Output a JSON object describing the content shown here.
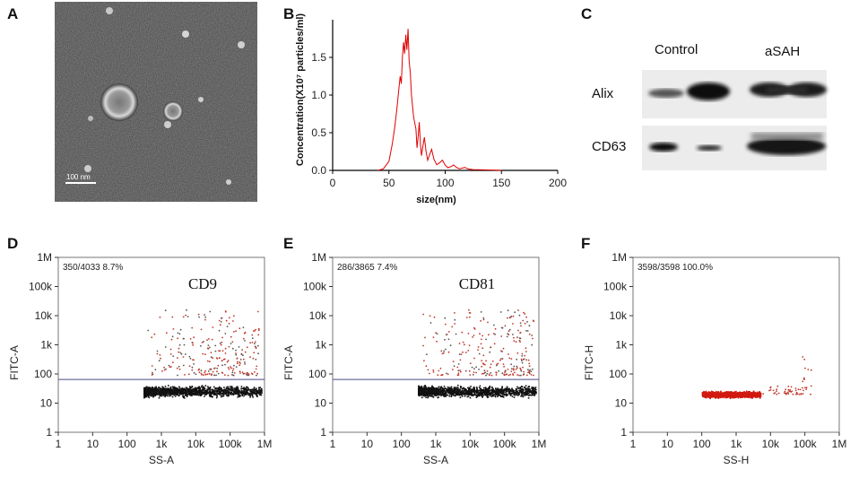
{
  "panels": {
    "A": {
      "letter": "A",
      "scale_bar": "100 nm"
    },
    "B": {
      "letter": "B"
    },
    "C": {
      "letter": "C",
      "columns": [
        "Control",
        "aSAH"
      ],
      "rows": [
        "Alix",
        "CD63"
      ]
    },
    "D": {
      "letter": "D"
    },
    "E": {
      "letter": "E"
    },
    "F": {
      "letter": "F"
    }
  },
  "chart_data": [
    {
      "id": "B",
      "type": "line",
      "title": "",
      "xlabel": "size(nm)",
      "ylabel": "Concentration(X10⁷ particles/ml)",
      "xlim": [
        0,
        200
      ],
      "ylim": [
        0,
        2.0
      ],
      "xticks": [
        "0",
        "50",
        "100",
        "150",
        "200"
      ],
      "yticks": [
        "0.0",
        "0.5",
        "1.0",
        "1.5"
      ],
      "color": "#e00000",
      "series": [
        {
          "name": "size distribution",
          "x": [
            40,
            45,
            50,
            53,
            55,
            57,
            59,
            60,
            61,
            62,
            63,
            64,
            65,
            66,
            67,
            68,
            69,
            70,
            71,
            72,
            74,
            76,
            78,
            80,
            83,
            86,
            90,
            95,
            100,
            105,
            110,
            115,
            120,
            130,
            140,
            150
          ],
          "y": [
            0.0,
            0.02,
            0.12,
            0.35,
            0.55,
            0.8,
            1.1,
            1.25,
            1.15,
            1.5,
            1.7,
            1.55,
            1.8,
            1.6,
            1.88,
            1.45,
            1.3,
            1.0,
            0.85,
            0.7,
            0.55,
            0.45,
            0.35,
            0.3,
            0.25,
            0.2,
            0.15,
            0.1,
            0.07,
            0.05,
            0.04,
            0.03,
            0.02,
            0.01,
            0.005,
            0.0
          ]
        }
      ]
    },
    {
      "id": "D",
      "type": "scatter",
      "xlabel": "SS-A",
      "ylabel": "FITC-A",
      "xscale": "log",
      "yscale": "log",
      "xticks": [
        "1",
        "10",
        "100",
        "1k",
        "10k",
        "100k",
        "1M"
      ],
      "yticks": [
        "1",
        "10",
        "100",
        "1k",
        "10k",
        "100k",
        "1M"
      ],
      "gate_stat": "350/4033  8.7%",
      "marker": "CD9",
      "gate_line_y": 65,
      "population_x": [
        300,
        800000
      ],
      "population_y": [
        15,
        45
      ],
      "positive_fraction": 0.087
    },
    {
      "id": "E",
      "type": "scatter",
      "xlabel": "SS-A",
      "ylabel": "FITC-A",
      "xscale": "log",
      "yscale": "log",
      "xticks": [
        "1",
        "10",
        "100",
        "1k",
        "10k",
        "100k",
        "1M"
      ],
      "yticks": [
        "1",
        "10",
        "100",
        "1k",
        "10k",
        "100k",
        "1M"
      ],
      "gate_stat": "286/3865  7.4%",
      "marker": "CD81",
      "gate_line_y": 65,
      "population_x": [
        300,
        800000
      ],
      "population_y": [
        15,
        45
      ],
      "positive_fraction": 0.074
    },
    {
      "id": "F",
      "type": "scatter",
      "xlabel": "SS-H",
      "ylabel": "FITC-H",
      "xscale": "log",
      "yscale": "log",
      "xticks": [
        "1",
        "10",
        "100",
        "1k",
        "10k",
        "100k",
        "1M"
      ],
      "yticks": [
        "1",
        "10",
        "100",
        "1k",
        "10k",
        "100k",
        "1M"
      ],
      "gate_stat": "3598/3598  100.0%",
      "marker": "",
      "population_x": [
        100,
        5000
      ],
      "population_y": [
        15,
        28
      ],
      "positive_fraction": 1.0
    }
  ]
}
